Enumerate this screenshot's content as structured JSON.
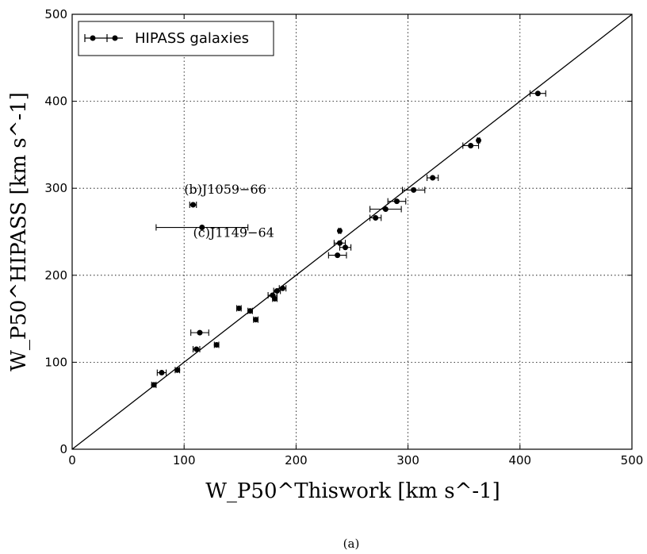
{
  "chart_data": {
    "type": "scatter",
    "xlabel": "W_P50^Thiswork [km s^-1]",
    "ylabel": "W_P50^HIPASS [km s^-1]",
    "xlim": [
      0,
      500
    ],
    "ylim": [
      0,
      500
    ],
    "x_ticks": [
      "0",
      "100",
      "200",
      "300",
      "400",
      "500"
    ],
    "y_ticks": [
      "0",
      "100",
      "200",
      "300",
      "400",
      "500"
    ],
    "grid": true,
    "grid_style": "dotted",
    "legend": {
      "position": "top-left",
      "entries": [
        "HIPASS galaxies"
      ]
    },
    "reference_line": {
      "type": "y=x",
      "from": [
        0,
        0
      ],
      "to": [
        500,
        500
      ]
    },
    "series": [
      {
        "name": "HIPASS galaxies",
        "points": [
          {
            "x": 73,
            "y": 74,
            "xerr": 2
          },
          {
            "x": 80,
            "y": 88,
            "xerr": 4
          },
          {
            "x": 94,
            "y": 91,
            "xerr": 2
          },
          {
            "x": 108,
            "y": 281,
            "xerr": 3
          },
          {
            "x": 116,
            "y": 255,
            "xerr": 41
          },
          {
            "x": 111,
            "y": 115,
            "xerr": 3
          },
          {
            "x": 114,
            "y": 134,
            "xerr": 8
          },
          {
            "x": 129,
            "y": 120,
            "xerr": 2
          },
          {
            "x": 149,
            "y": 162,
            "xerr": 2
          },
          {
            "x": 159,
            "y": 159,
            "xerr": 2
          },
          {
            "x": 164,
            "y": 149,
            "xerr": 2
          },
          {
            "x": 179,
            "y": 177,
            "xerr": 4
          },
          {
            "x": 181,
            "y": 173,
            "xerr": 2
          },
          {
            "x": 183,
            "y": 182,
            "xerr": 3
          },
          {
            "x": 188,
            "y": 185,
            "xerr": 3
          },
          {
            "x": 237,
            "y": 223,
            "xerr": 8
          },
          {
            "x": 239,
            "y": 237,
            "xerr": 5
          },
          {
            "x": 239,
            "y": 251,
            "xerr": 1
          },
          {
            "x": 244,
            "y": 232,
            "xerr": 5
          },
          {
            "x": 271,
            "y": 266,
            "xerr": 5
          },
          {
            "x": 280,
            "y": 276,
            "xerr": 14
          },
          {
            "x": 290,
            "y": 285,
            "xerr": 8
          },
          {
            "x": 305,
            "y": 298,
            "xerr": 10
          },
          {
            "x": 322,
            "y": 312,
            "xerr": 5
          },
          {
            "x": 356,
            "y": 349,
            "xerr": 7
          },
          {
            "x": 363,
            "y": 355,
            "xerr": 1
          },
          {
            "x": 416,
            "y": 409,
            "xerr": 7
          }
        ]
      }
    ],
    "annotations": [
      {
        "text": "(b)J1059−66",
        "x": 100,
        "y": 294
      },
      {
        "text": "(c)J1149−64",
        "x": 108,
        "y": 244
      }
    ],
    "caption": "(a)"
  }
}
